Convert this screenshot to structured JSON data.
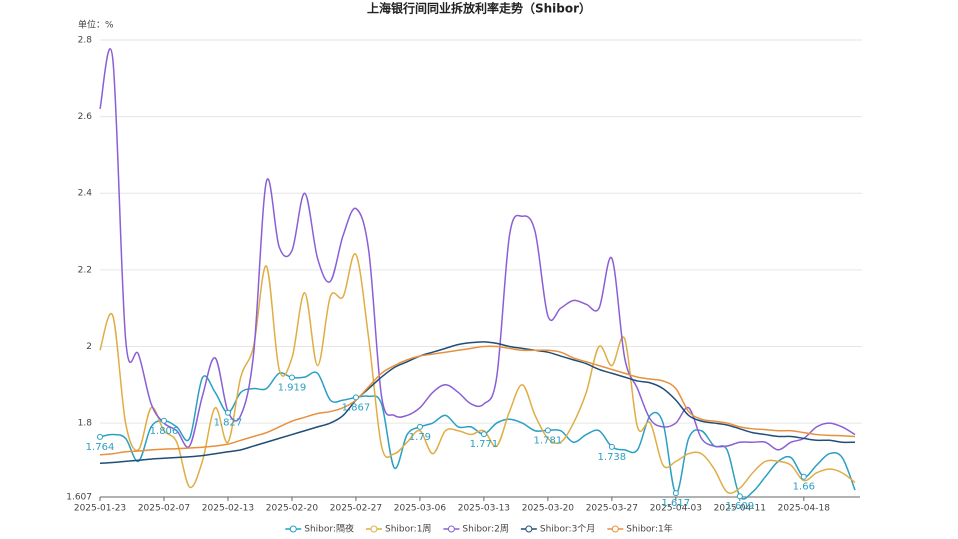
{
  "chart_data": {
    "type": "line",
    "title": "上海银行间同业拆放利率走势（Shibor）",
    "unit_label": "单位：%",
    "categories": [
      "2025-01-23",
      null,
      null,
      null,
      null,
      "2025-02-07",
      null,
      null,
      null,
      null,
      "2025-02-13",
      null,
      null,
      null,
      null,
      "2025-02-20",
      null,
      null,
      null,
      null,
      "2025-02-27",
      null,
      null,
      null,
      null,
      "2025-03-06",
      null,
      null,
      null,
      null,
      "2025-03-13",
      null,
      null,
      null,
      null,
      "2025-03-20",
      null,
      null,
      null,
      null,
      "2025-03-27",
      null,
      null,
      null,
      null,
      "2025-04-03",
      null,
      null,
      null,
      null,
      "2025-04-11",
      null,
      null,
      null,
      null,
      "2025-04-18",
      null,
      null,
      null,
      null
    ],
    "series": [
      {
        "name": "Shibor:隔夜",
        "color": "#2a9fc4",
        "values": [
          1.764,
          1.77,
          1.76,
          1.7,
          1.79,
          1.806,
          1.79,
          1.76,
          1.918,
          1.88,
          1.827,
          1.88,
          1.89,
          1.89,
          1.93,
          1.919,
          1.92,
          1.93,
          1.86,
          1.86,
          1.867,
          1.87,
          1.85,
          1.683,
          1.77,
          1.79,
          1.8,
          1.82,
          1.79,
          1.79,
          1.771,
          1.8,
          1.81,
          1.8,
          1.78,
          1.781,
          1.78,
          1.75,
          1.77,
          1.78,
          1.738,
          1.73,
          1.73,
          1.82,
          1.8,
          1.617,
          1.76,
          1.78,
          1.74,
          1.73,
          1.609,
          1.62,
          1.66,
          1.7,
          1.71,
          1.66,
          1.69,
          1.72,
          1.71,
          1.625
        ]
      },
      {
        "name": "Shibor:1周",
        "color": "#e0ad45",
        "values": [
          1.99,
          2.08,
          1.8,
          1.73,
          1.84,
          1.78,
          1.75,
          1.633,
          1.7,
          1.84,
          1.75,
          1.92,
          2.0,
          2.21,
          1.94,
          1.97,
          2.14,
          1.95,
          2.13,
          2.13,
          2.24,
          2.02,
          1.74,
          1.72,
          1.75,
          1.78,
          1.72,
          1.78,
          1.78,
          1.77,
          1.78,
          1.74,
          1.83,
          1.9,
          1.82,
          1.76,
          1.75,
          1.8,
          1.88,
          2.0,
          1.95,
          2.02,
          1.79,
          1.8,
          1.69,
          1.7,
          1.72,
          1.72,
          1.68,
          1.62,
          1.63,
          1.67,
          1.7,
          1.7,
          1.69,
          1.65,
          1.67,
          1.68,
          1.67,
          1.645
        ]
      },
      {
        "name": "Shibor:2周",
        "color": "#8a5fd6",
        "values": [
          2.62,
          2.75,
          2.02,
          1.98,
          1.85,
          1.8,
          1.78,
          1.74,
          1.87,
          1.97,
          1.83,
          1.82,
          1.98,
          2.43,
          2.26,
          2.25,
          2.4,
          2.23,
          2.17,
          2.29,
          2.36,
          2.25,
          1.87,
          1.82,
          1.82,
          1.84,
          1.88,
          1.9,
          1.88,
          1.85,
          1.85,
          1.92,
          2.29,
          2.34,
          2.3,
          2.08,
          2.1,
          2.12,
          2.11,
          2.1,
          2.23,
          1.97,
          1.89,
          1.81,
          1.79,
          1.8,
          1.84,
          1.76,
          1.74,
          1.74,
          1.75,
          1.75,
          1.75,
          1.73,
          1.75,
          1.76,
          1.79,
          1.8,
          1.79,
          1.77
        ]
      },
      {
        "name": "Shibor:3个月",
        "color": "#1f4e79",
        "values": [
          1.695,
          1.697,
          1.7,
          1.703,
          1.706,
          1.708,
          1.71,
          1.712,
          1.715,
          1.72,
          1.725,
          1.73,
          1.74,
          1.75,
          1.76,
          1.77,
          1.78,
          1.79,
          1.8,
          1.82,
          1.86,
          1.89,
          1.92,
          1.945,
          1.96,
          1.975,
          1.985,
          1.995,
          2.005,
          2.01,
          2.012,
          2.008,
          2.0,
          1.995,
          1.99,
          1.985,
          1.975,
          1.965,
          1.955,
          1.94,
          1.93,
          1.92,
          1.91,
          1.905,
          1.89,
          1.86,
          1.82,
          1.805,
          1.8,
          1.795,
          1.785,
          1.775,
          1.77,
          1.765,
          1.765,
          1.76,
          1.755,
          1.755,
          1.75,
          1.75
        ]
      },
      {
        "name": "Shibor:1年",
        "color": "#e8903c",
        "values": [
          1.717,
          1.72,
          1.725,
          1.727,
          1.73,
          1.732,
          1.733,
          1.735,
          1.737,
          1.74,
          1.745,
          1.755,
          1.765,
          1.775,
          1.79,
          1.805,
          1.815,
          1.825,
          1.83,
          1.84,
          1.86,
          1.895,
          1.93,
          1.95,
          1.965,
          1.975,
          1.98,
          1.985,
          1.99,
          1.995,
          2.0,
          2.0,
          1.995,
          1.99,
          1.99,
          1.99,
          1.985,
          1.97,
          1.96,
          1.95,
          1.94,
          1.93,
          1.92,
          1.915,
          1.91,
          1.89,
          1.83,
          1.81,
          1.805,
          1.8,
          1.79,
          1.785,
          1.783,
          1.78,
          1.78,
          1.775,
          1.77,
          1.768,
          1.767,
          1.765
        ]
      }
    ],
    "ylim": [
      1.607,
      2.8
    ],
    "yticks": [
      1.607,
      1.8,
      2,
      2.2,
      2.4,
      2.6,
      2.8
    ],
    "grid": true,
    "legend_position": "bottom"
  }
}
